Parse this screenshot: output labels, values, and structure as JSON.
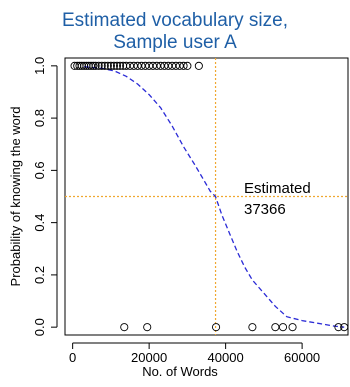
{
  "chart_data": {
    "type": "scatter",
    "title_lines": [
      "Estimated vocabulary size,",
      "Sample user A"
    ],
    "xlabel": "No. of Words",
    "ylabel": "Probability of knowing the word",
    "xlim": [
      -2000,
      72000
    ],
    "ylim": [
      -0.03,
      1.03
    ],
    "x_ticks": [
      0,
      20000,
      40000,
      60000
    ],
    "x_tick_labels": [
      "0",
      "20000",
      "40000",
      "60000"
    ],
    "y_ticks": [
      0.0,
      0.2,
      0.4,
      0.6,
      0.8,
      1.0
    ],
    "y_tick_labels": [
      "0.0",
      "0.2",
      "0.4",
      "0.6",
      "0.8",
      "1.0"
    ],
    "grid": false,
    "points_known": [
      500,
      1200,
      1800,
      2400,
      3000,
      3600,
      4200,
      4800,
      5400,
      6000,
      6800,
      7600,
      8400,
      9200,
      10000,
      10800,
      11600,
      12400,
      13200,
      14000,
      15000,
      16000,
      17000,
      18000,
      19000,
      20000,
      21000,
      22000,
      23000,
      24000,
      25000,
      26000,
      27000,
      28000,
      29000,
      30000,
      33000
    ],
    "points_unknown": [
      13500,
      19500,
      37500,
      47000,
      53000,
      55000,
      57500,
      69500,
      71000
    ],
    "fit_curve": [
      [
        3000,
        0.997
      ],
      [
        8000,
        0.99
      ],
      [
        11000,
        0.98
      ],
      [
        14000,
        0.96
      ],
      [
        17000,
        0.93
      ],
      [
        20000,
        0.89
      ],
      [
        23000,
        0.84
      ],
      [
        26000,
        0.77
      ],
      [
        29000,
        0.69
      ],
      [
        32000,
        0.62
      ],
      [
        34000,
        0.57
      ],
      [
        36000,
        0.52
      ],
      [
        37366,
        0.5
      ],
      [
        39000,
        0.43
      ],
      [
        41000,
        0.36
      ],
      [
        43000,
        0.29
      ],
      [
        45000,
        0.23
      ],
      [
        47000,
        0.18
      ],
      [
        50000,
        0.13
      ],
      [
        53000,
        0.08
      ],
      [
        56000,
        0.04
      ],
      [
        60000,
        0.025
      ],
      [
        64000,
        0.015
      ],
      [
        68000,
        0.005
      ],
      [
        71000,
        0.0
      ]
    ],
    "reference_x": 37366,
    "reference_y": 0.5,
    "annotation": {
      "line1": "Estimated",
      "line2": "37366"
    },
    "colors": {
      "title": "#1f5fa6",
      "curve": "#2b2bd6",
      "reference": "#f0a830",
      "points": "#000000",
      "axis": "#000000"
    }
  }
}
